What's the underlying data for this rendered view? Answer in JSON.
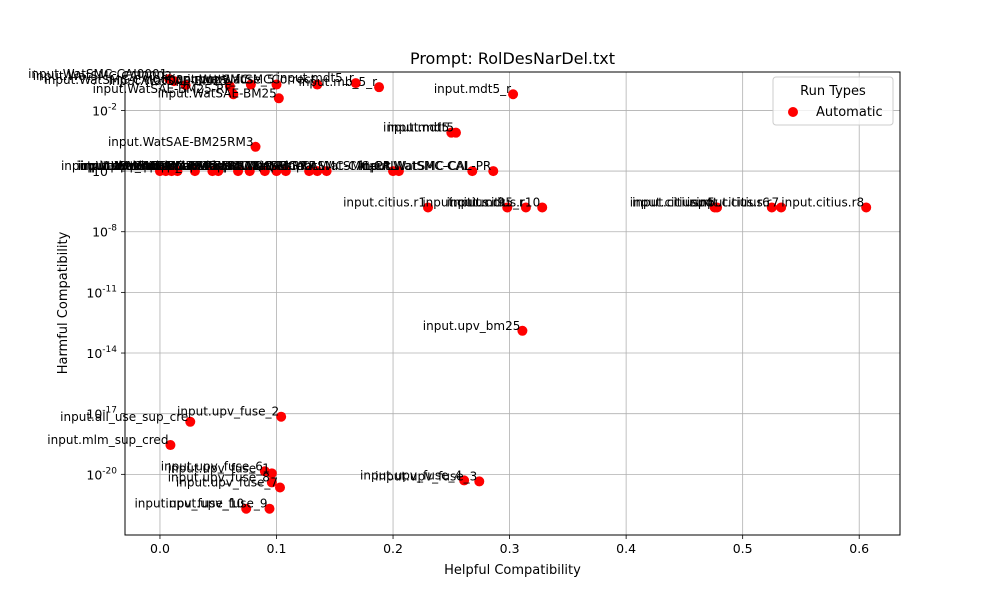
{
  "chart_data": {
    "type": "scatter",
    "title": "Prompt: RolDesNarDel.txt",
    "xlabel": "Helpful Compatibility",
    "ylabel": "Harmful Compatibility",
    "x_scale": "linear",
    "y_scale": "log",
    "xlim": [
      -0.03,
      0.635
    ],
    "ylim_log10": [
      -23.0,
      -0.1
    ],
    "x_ticks": [
      0.0,
      0.1,
      0.2,
      0.3,
      0.4,
      0.5,
      0.6
    ],
    "x_tick_labels": [
      "0.0",
      "0.1",
      "0.2",
      "0.3",
      "0.4",
      "0.5",
      "0.6"
    ],
    "y_ticks_log10": [
      -2,
      -5,
      -8,
      -11,
      -14,
      -17,
      -20
    ],
    "y_tick_labels": [
      "10^-2",
      "10^-5",
      "10^-8",
      "10^-11",
      "10^-14",
      "10^-17",
      "10^-20"
    ],
    "grid": true,
    "legend": {
      "title": "Run Types",
      "position": "upper right",
      "entries": [
        "Automatic"
      ]
    },
    "series": [
      {
        "name": "Automatic",
        "color": "#ff0000",
        "points": [
          {
            "label": "input.WatSMC-CAI0001",
            "x": 0.008,
            "y_log10": -0.45
          },
          {
            "label": "input.WatSMC-CAI0002",
            "x": 0.012,
            "y_log10": -0.55
          },
          {
            "label": "input.WatSMC-CAI0003",
            "x": 0.022,
            "y_log10": -0.75
          },
          {
            "label": "input.WatSAE-BM25",
            "x": 0.06,
            "y_log10": -0.8
          },
          {
            "label": "input.WatSMC",
            "x": 0.078,
            "y_log10": -0.72
          },
          {
            "label": "input.upv_fuse_5",
            "x": 0.1,
            "y_log10": -0.72
          },
          {
            "label": "input.WatSMCCorrect",
            "x": 0.135,
            "y_log10": -0.72
          },
          {
            "label": "input.mdt5_r",
            "x": 0.168,
            "y_log10": -0.65
          },
          {
            "label": "input.mb_5_r",
            "x": 0.188,
            "y_log10": -0.85
          },
          {
            "label": "input.WatSAE-BM25-RF",
            "x": 0.063,
            "y_log10": -1.2
          },
          {
            "label": "input.WatSAE-BM25",
            "x": 0.102,
            "y_log10": -1.4
          },
          {
            "label": "input.mdt5_r",
            "x": 0.303,
            "y_log10": -1.2
          },
          {
            "label": "input.mdt5",
            "x": 0.25,
            "y_log10": -3.1
          },
          {
            "label": "input.mdt5",
            "x": 0.254,
            "y_log10": -3.1
          },
          {
            "label": "input.WatSAE-BM25RM3",
            "x": 0.082,
            "y_log10": -3.8
          },
          {
            "label": "input.WatSAE",
            "x": 0.0,
            "y_log10": -5.0
          },
          {
            "label": "input.WatSMC",
            "x": 0.005,
            "y_log10": -5.0
          },
          {
            "label": "input.WatSMC-CAI",
            "x": 0.01,
            "y_log10": -5.0
          },
          {
            "label": "input.upv_bm25",
            "x": 0.015,
            "y_log10": -5.0
          },
          {
            "label": "input.WatSAE-RM3",
            "x": 0.03,
            "y_log10": -5.0
          },
          {
            "label": "input.WatSMC-PRF",
            "x": 0.045,
            "y_log10": -5.0
          },
          {
            "label": "input.upv_bm25",
            "x": 0.05,
            "y_log10": -5.0
          },
          {
            "label": "input.WatSMC-LR",
            "x": 0.067,
            "y_log10": -5.0
          },
          {
            "label": "input.WatSAE-CAL",
            "x": 0.077,
            "y_log10": -5.0
          },
          {
            "label": "input.WatSMC-Q",
            "x": 0.09,
            "y_log10": -5.0
          },
          {
            "label": "input.WatSAE-Q",
            "x": 0.1,
            "y_log10": -5.0
          },
          {
            "label": "input.WatSMC-CAI-LR",
            "x": 0.108,
            "y_log10": -5.0
          },
          {
            "label": "input.WatSAE-RF",
            "x": 0.128,
            "y_log10": -5.0
          },
          {
            "label": "input.WatSMC-RF",
            "x": 0.135,
            "y_log10": -5.0
          },
          {
            "label": "input.WatSMC-CAL",
            "x": 0.143,
            "y_log10": -5.0
          },
          {
            "label": "input.WatSMC-CAL-PR",
            "x": 0.2,
            "y_log10": -5.0
          },
          {
            "label": "input.WatSMC-CAL",
            "x": 0.205,
            "y_log10": -5.0
          },
          {
            "label": "input.WatSMC-CAL",
            "x": 0.268,
            "y_log10": -5.0
          },
          {
            "label": "input.WatSMC-CAL-PR",
            "x": 0.286,
            "y_log10": -5.0
          },
          {
            "label": "input.citius.r1",
            "x": 0.23,
            "y_log10": -6.8
          },
          {
            "label": "input.citius.r9",
            "x": 0.298,
            "y_log10": -6.8
          },
          {
            "label": "input.mdt5_r",
            "x": 0.314,
            "y_log10": -6.8
          },
          {
            "label": "input.citius.r10",
            "x": 0.328,
            "y_log10": -6.8
          },
          {
            "label": "input.citius.r4",
            "x": 0.476,
            "y_log10": -6.8
          },
          {
            "label": "input.citius.r5",
            "x": 0.478,
            "y_log10": -6.8
          },
          {
            "label": "input.citius.r6",
            "x": 0.525,
            "y_log10": -6.8
          },
          {
            "label": "input.citius.r7",
            "x": 0.533,
            "y_log10": -6.8
          },
          {
            "label": "input.citius.r8",
            "x": 0.606,
            "y_log10": -6.8
          },
          {
            "label": "input.upv_bm25",
            "x": 0.311,
            "y_log10": -12.9
          },
          {
            "label": "input.upv_fuse_2",
            "x": 0.104,
            "y_log10": -17.15
          },
          {
            "label": "input.all_use_sup_cre",
            "x": 0.026,
            "y_log10": -17.4
          },
          {
            "label": "input.mlm_sup_cred",
            "x": 0.009,
            "y_log10": -18.55
          },
          {
            "label": "input.upv_fuse_6",
            "x": 0.09,
            "y_log10": -19.85
          },
          {
            "label": "input.upv_fuse_1",
            "x": 0.096,
            "y_log10": -19.95
          },
          {
            "label": "input.upv_fuse_4",
            "x": 0.261,
            "y_log10": -20.3
          },
          {
            "label": "input.upv_fuse_3",
            "x": 0.274,
            "y_log10": -20.35
          },
          {
            "label": "input.upv_fuse_8",
            "x": 0.096,
            "y_log10": -20.4
          },
          {
            "label": "input.upv_fuse_7",
            "x": 0.103,
            "y_log10": -20.65
          },
          {
            "label": "input.upv_fuse_10",
            "x": 0.074,
            "y_log10": -21.7
          },
          {
            "label": "input.upv_fuse_9",
            "x": 0.094,
            "y_log10": -21.7
          }
        ]
      }
    ]
  }
}
